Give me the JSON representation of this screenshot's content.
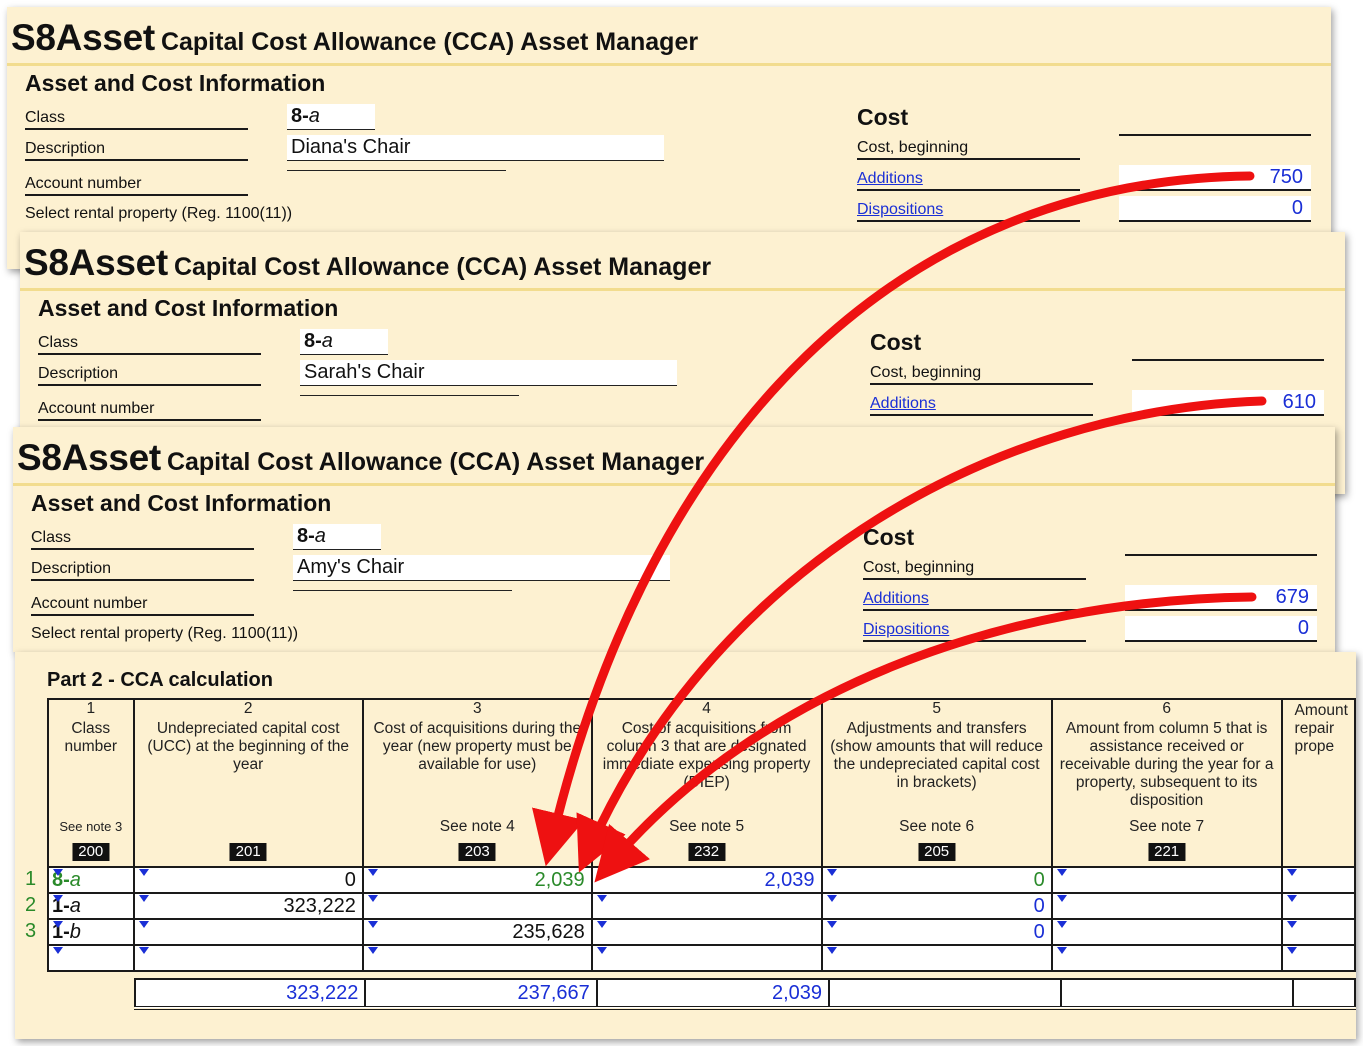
{
  "forms": [
    {
      "brand": "S8Asset",
      "subtitle": "Capital Cost Allowance (CCA) Asset Manager",
      "section": "Asset and Cost Information",
      "labels": {
        "class": "Class",
        "description": "Description",
        "account": "Account number",
        "rental": "Select rental property (Reg. 1100(11))"
      },
      "class_num": "8-",
      "class_letter": "a",
      "description": "Diana's Chair",
      "account_number": "",
      "cost": {
        "heading": "Cost",
        "beginning_label": "Cost, beginning",
        "beginning_value": "",
        "additions_label": "Additions",
        "additions_value": "750",
        "dispositions_label": "Dispositions",
        "dispositions_value": "0"
      }
    },
    {
      "brand": "S8Asset",
      "subtitle": "Capital Cost Allowance (CCA) Asset Manager",
      "section": "Asset and Cost Information",
      "labels": {
        "class": "Class",
        "description": "Description",
        "account": "Account number"
      },
      "class_num": "8-",
      "class_letter": "a",
      "description": "Sarah's Chair",
      "account_number": "",
      "cost": {
        "heading": "Cost",
        "beginning_label": "Cost, beginning",
        "beginning_value": "",
        "additions_label": "Additions",
        "additions_value": "610"
      }
    },
    {
      "brand": "S8Asset",
      "subtitle": "Capital Cost Allowance (CCA) Asset Manager",
      "section": "Asset and Cost Information",
      "labels": {
        "class": "Class",
        "description": "Description",
        "account": "Account number",
        "rental": "Select rental property (Reg. 1100(11))"
      },
      "class_num": "8-",
      "class_letter": "a",
      "description": "Amy's Chair",
      "account_number": "",
      "cost": {
        "heading": "Cost",
        "beginning_label": "Cost, beginning",
        "beginning_value": "",
        "additions_label": "Additions",
        "additions_value": "679",
        "dispositions_label": "Dispositions",
        "dispositions_value": "0"
      }
    }
  ],
  "part2": {
    "title": "Part 2 - CCA calculation",
    "columns": [
      {
        "no": "1",
        "desc": "Class number",
        "note_prefix": "See ",
        "note_bold": "note 3",
        "code": "200"
      },
      {
        "no": "2",
        "desc": "Undepreciated capital cost (UCC) at the beginning of the year",
        "note_prefix": "",
        "note_bold": "",
        "code": "201"
      },
      {
        "no": "3",
        "desc": "Cost of acquisitions during the year (new property must be available for use)",
        "note_prefix": "See ",
        "note_bold": "note 4",
        "code": "203"
      },
      {
        "no": "4",
        "desc": "Cost of acquisitions from column 3 that are designated immediate expensing property (DIEP)",
        "note_prefix": "See ",
        "note_bold": "note 5",
        "code": "232"
      },
      {
        "no": "5",
        "desc": "Adjustments and transfers (show amounts that will reduce the undepreciated capital cost in brackets)",
        "note_prefix": "See ",
        "note_bold": "note 6",
        "code": "205"
      },
      {
        "no": "6",
        "desc": "Amount from column 5 that is assistance received or receivable during the year for a property, subsequent to its disposition",
        "note_prefix": "See ",
        "note_bold": "note 7",
        "code": "221"
      },
      {
        "no": "",
        "desc": "Amount repair prope",
        "note_prefix": "",
        "note_bold": "",
        "code": ""
      }
    ],
    "rows": [
      {
        "n": "1",
        "class_num": "8-",
        "class_letter": "a",
        "c2": "0",
        "c3": "2,039",
        "c4": "2,039",
        "c5": "0",
        "c6": ""
      },
      {
        "n": "2",
        "class_num": "1-",
        "class_letter": "a",
        "c2": "323,222",
        "c3": "",
        "c4": "",
        "c5": "0",
        "c6": ""
      },
      {
        "n": "3",
        "class_num": "1-",
        "class_letter": "b",
        "c2": "",
        "c3": "235,628",
        "c4": "",
        "c5": "0",
        "c6": ""
      },
      {
        "n": "",
        "class_num": "",
        "class_letter": "",
        "c2": "",
        "c3": "",
        "c4": "",
        "c5": "",
        "c6": ""
      }
    ],
    "totals": {
      "c2": "323,222",
      "c3": "237,667",
      "c4": "2,039",
      "c5": "",
      "c6": ""
    }
  },
  "colors": {
    "panel": "#fdf1d1",
    "link": "#1a2fd6",
    "green": "#2a8a2a",
    "arrow": "#ee1111"
  }
}
